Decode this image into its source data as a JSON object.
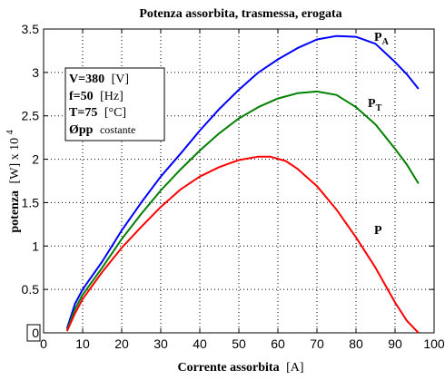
{
  "chart_data": {
    "type": "line",
    "title": "Potenza assorbita, trasmessa, erogata",
    "xlabel": {
      "bold": "Corrente assorbita",
      "unit": "[A]"
    },
    "ylabel": {
      "bold": "potenza",
      "unit": "[W] x 10",
      "exp": "4"
    },
    "xlim": [
      0,
      100
    ],
    "ylim": [
      0,
      3.5
    ],
    "x_ticks": [
      0,
      10,
      20,
      30,
      40,
      50,
      60,
      70,
      80,
      90,
      100
    ],
    "y_ticks": [
      0,
      0.5,
      1,
      1.5,
      2,
      2.5,
      3,
      3.5
    ],
    "x_tick_labels": [
      "0",
      "10",
      "20",
      "30",
      "40",
      "50",
      "60",
      "70",
      "80",
      "90",
      "100"
    ],
    "y_tick_labels": [
      "0",
      "0.5",
      "1",
      "1.5",
      "2",
      "2.5",
      "3",
      "3.5"
    ],
    "grid": true,
    "series": [
      {
        "name": "PA",
        "color": "#0000ff",
        "label_main": "P",
        "label_sub": "A",
        "x": [
          6,
          8,
          10,
          15,
          20,
          25,
          30,
          35,
          40,
          45,
          50,
          55,
          60,
          65,
          70,
          75,
          80,
          85,
          90,
          93,
          96
        ],
        "y": [
          0.05,
          0.33,
          0.5,
          0.82,
          1.18,
          1.5,
          1.8,
          2.06,
          2.33,
          2.58,
          2.8,
          3.0,
          3.15,
          3.28,
          3.38,
          3.42,
          3.41,
          3.33,
          3.12,
          2.98,
          2.81
        ]
      },
      {
        "name": "PT",
        "color": "#008000",
        "label_main": "P",
        "label_sub": "T",
        "x": [
          6,
          8,
          10,
          15,
          20,
          25,
          30,
          35,
          40,
          45,
          50,
          55,
          60,
          65,
          70,
          75,
          80,
          85,
          90,
          93,
          96
        ],
        "y": [
          0.03,
          0.27,
          0.44,
          0.75,
          1.08,
          1.37,
          1.64,
          1.88,
          2.1,
          2.3,
          2.47,
          2.6,
          2.7,
          2.76,
          2.78,
          2.74,
          2.6,
          2.4,
          2.12,
          1.94,
          1.72
        ]
      },
      {
        "name": "P",
        "color": "#ff0000",
        "label_main": "P",
        "label_sub": "",
        "x": [
          6,
          8,
          10,
          15,
          20,
          25,
          30,
          35,
          40,
          45,
          50,
          55,
          58,
          62,
          65,
          70,
          75,
          80,
          85,
          90,
          93,
          96
        ],
        "y": [
          0.02,
          0.22,
          0.39,
          0.7,
          0.98,
          1.22,
          1.45,
          1.65,
          1.8,
          1.91,
          1.99,
          2.03,
          2.03,
          1.98,
          1.89,
          1.69,
          1.42,
          1.1,
          0.75,
          0.35,
          0.14,
          0.0
        ]
      }
    ]
  },
  "annotation": {
    "v_label": "V=380",
    "v_unit": "[V]",
    "f_label": "f=50",
    "f_unit": "[Hz]",
    "t_label": "T=75",
    "t_unit": "[°C]",
    "phi_label": "Øpp",
    "phi_note": "costante"
  }
}
